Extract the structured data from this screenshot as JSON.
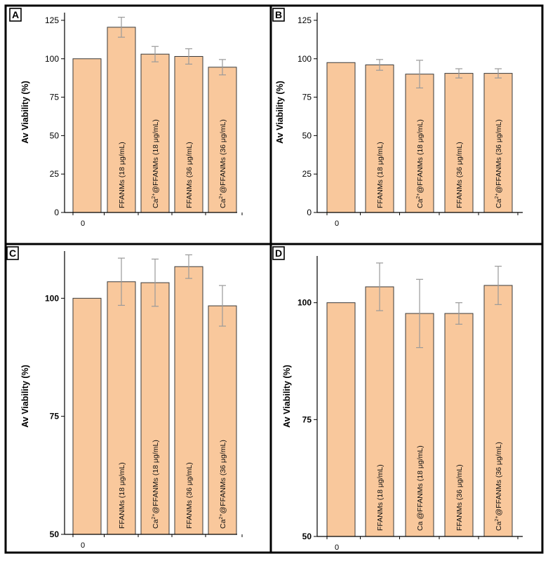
{
  "figure": {
    "bar_color": "#F9C89C",
    "bar_stroke": "#3a3a3a",
    "error_color": "#9a9a9a",
    "frame_color": "#000000"
  },
  "chart_data": [
    {
      "panel": "A",
      "type": "bar",
      "ylabel": "Av Viability (%)",
      "ylim": [
        0,
        130
      ],
      "yticks": [
        0,
        25,
        50,
        75,
        100,
        125
      ],
      "x_tick_label": "0",
      "categories": [
        "0",
        "FFANMs (18 μg/mL)",
        "Ca2+@FFANMs (18 μg/mL)",
        "FFANMs (36 μg/mL)",
        "Ca2+@FFANMs (36 μg/mL)"
      ],
      "bar_labels": [
        {
          "text": "",
          "sup": "",
          "rest": ""
        },
        {
          "text": "FFANMs (18 μg/mL)",
          "sup": "",
          "rest": ""
        },
        {
          "text": "Ca",
          "sup": "2+",
          "rest": "@FFANMs (18 μg/mL)"
        },
        {
          "text": "FFANMs (36 μg/mL)",
          "sup": "",
          "rest": ""
        },
        {
          "text": "Ca",
          "sup": "2+",
          "rest": "@FFANMs (36 μg/mL)"
        }
      ],
      "values": [
        100,
        120.5,
        103,
        101.5,
        94.5
      ],
      "errors": [
        0,
        6.5,
        5,
        5,
        5
      ]
    },
    {
      "panel": "B",
      "type": "bar",
      "ylabel": "Av Viability (%)",
      "ylim": [
        0,
        130
      ],
      "yticks": [
        0,
        25,
        50,
        75,
        100,
        125
      ],
      "x_tick_label": "0",
      "categories": [
        "0",
        "FFANMs (18 μg/mL)",
        "Ca2+@FFANMs (18 μg/mL)",
        "FFANMs (36 μg/mL)",
        "Ca2+@FFANMs (36 μg/mL)"
      ],
      "bar_labels": [
        {
          "text": "",
          "sup": "",
          "rest": ""
        },
        {
          "text": "FFANMs (18 μg/mL)",
          "sup": "",
          "rest": ""
        },
        {
          "text": "Ca",
          "sup": "2+",
          "rest": "@FFANMs (18 μg/mL)"
        },
        {
          "text": "FFANMs (36 μg/mL)",
          "sup": "",
          "rest": ""
        },
        {
          "text": "Ca",
          "sup": "2+",
          "rest": "@FFANMs (36 μg/mL)"
        }
      ],
      "values": [
        97.5,
        96,
        90,
        90.5,
        90.5
      ],
      "errors": [
        0,
        3.5,
        9,
        3,
        3
      ]
    },
    {
      "panel": "C",
      "type": "bar",
      "ylabel": "Av Viability (%)",
      "ylim": [
        50,
        110
      ],
      "yticks": [
        50,
        75,
        100
      ],
      "x_tick_label": "0",
      "categories": [
        "0",
        "FFANMs (18 μg/mL)",
        "Ca2+@FFANMs (18 μg/mL)",
        "FFANMs (36 μg/mL)",
        "Ca2+@FFANMs (36 μg/mL)"
      ],
      "bar_labels": [
        {
          "text": "",
          "sup": "",
          "rest": ""
        },
        {
          "text": "FFANMs (18 μg/mL)",
          "sup": "",
          "rest": ""
        },
        {
          "text": "Ca",
          "sup": "2+",
          "rest": "@FFANMs (18 μg/mL)"
        },
        {
          "text": "FFANMs (36 μg/mL)",
          "sup": "",
          "rest": ""
        },
        {
          "text": "Ca",
          "sup": "2+",
          "rest": "@FFANMs (36 μg/mL)"
        }
      ],
      "values": [
        100,
        103.5,
        103.3,
        106.7,
        98.4
      ],
      "errors": [
        0,
        5,
        5,
        2.5,
        4.3
      ]
    },
    {
      "panel": "D",
      "type": "bar",
      "ylabel": "Av Viability (%)",
      "ylim": [
        50,
        110
      ],
      "yticks": [
        50,
        75,
        100
      ],
      "x_tick_label": "0",
      "categories": [
        "0",
        "FFANMs (18 μg/mL)",
        "Ca @FFANMs (18 μg/mL)",
        "FFANMs (36 μg/mL)",
        "Ca2+@FFANMs (36 μg/mL)"
      ],
      "bar_labels": [
        {
          "text": "",
          "sup": "",
          "rest": ""
        },
        {
          "text": "FFANMs (18 μg/mL)",
          "sup": "",
          "rest": ""
        },
        {
          "text": "Ca @FFANMs (18 μg/mL)",
          "sup": "",
          "rest": ""
        },
        {
          "text": "FFANMs (36 μg/mL)",
          "sup": "",
          "rest": ""
        },
        {
          "text": "Ca",
          "sup": "2+",
          "rest": "@FFANMs (36 μg/mL)"
        }
      ],
      "values": [
        100,
        103.4,
        97.7,
        97.7,
        103.7
      ],
      "errors": [
        0,
        5.1,
        7.3,
        2.3,
        4.1
      ]
    }
  ]
}
